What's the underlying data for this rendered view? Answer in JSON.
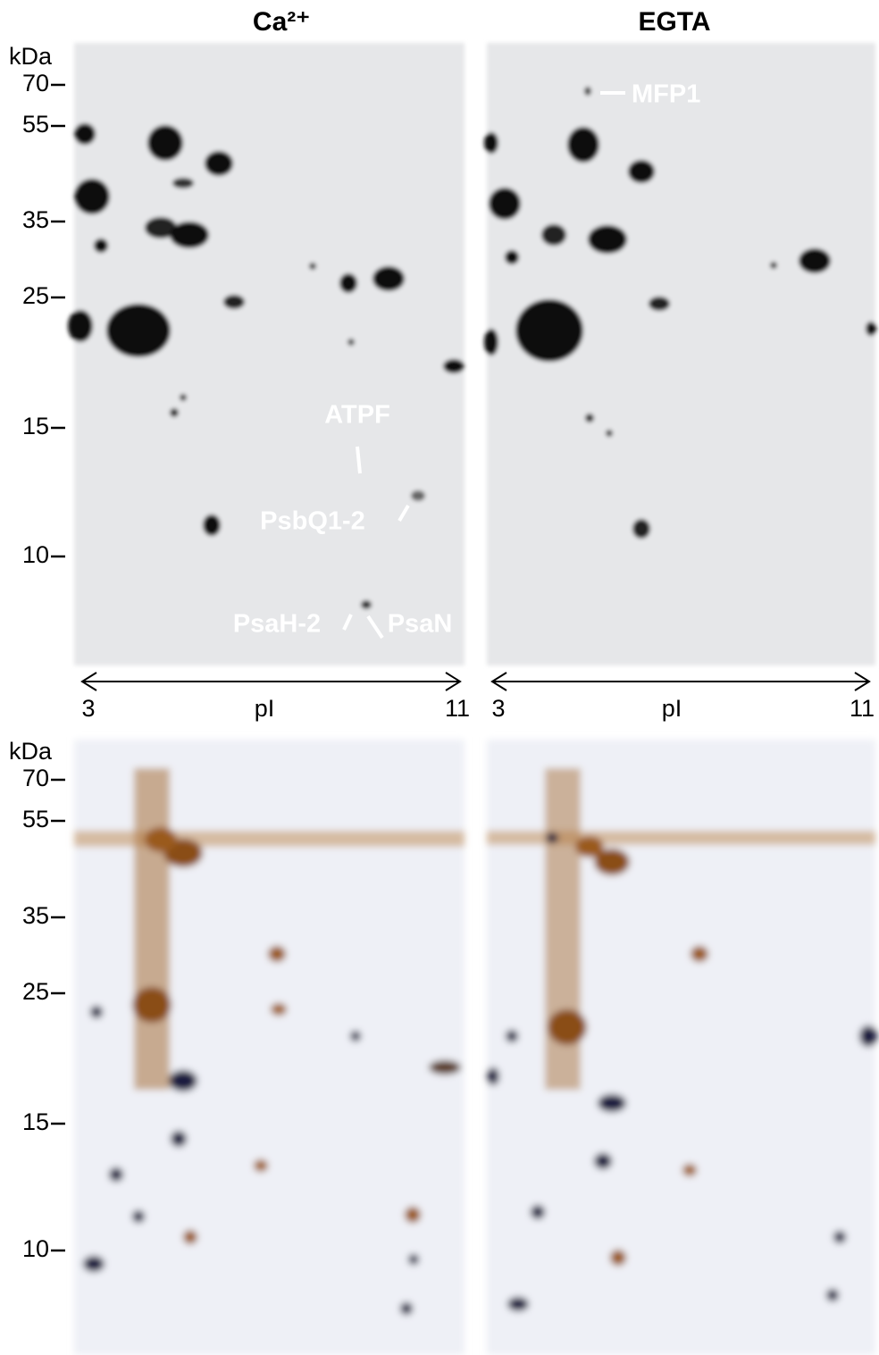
{
  "columns": {
    "left": "Ca²⁺",
    "right": "EGTA"
  },
  "top_axis": {
    "unit": "kDa",
    "markers": [
      "70",
      "55",
      "35",
      "25",
      "15",
      "10"
    ]
  },
  "bottom_axis": {
    "unit": "kDa",
    "markers": [
      "70",
      "55",
      "35",
      "25",
      "15",
      "10"
    ]
  },
  "pi_axis": {
    "left": [
      "3",
      "pI",
      "11"
    ],
    "right": [
      "3",
      "pI",
      "11"
    ]
  },
  "annotations": {
    "left": [
      "ATPF",
      "PsbQ1-2",
      "PsaH-2",
      "PsaN"
    ],
    "right": [
      "MFP1"
    ]
  }
}
